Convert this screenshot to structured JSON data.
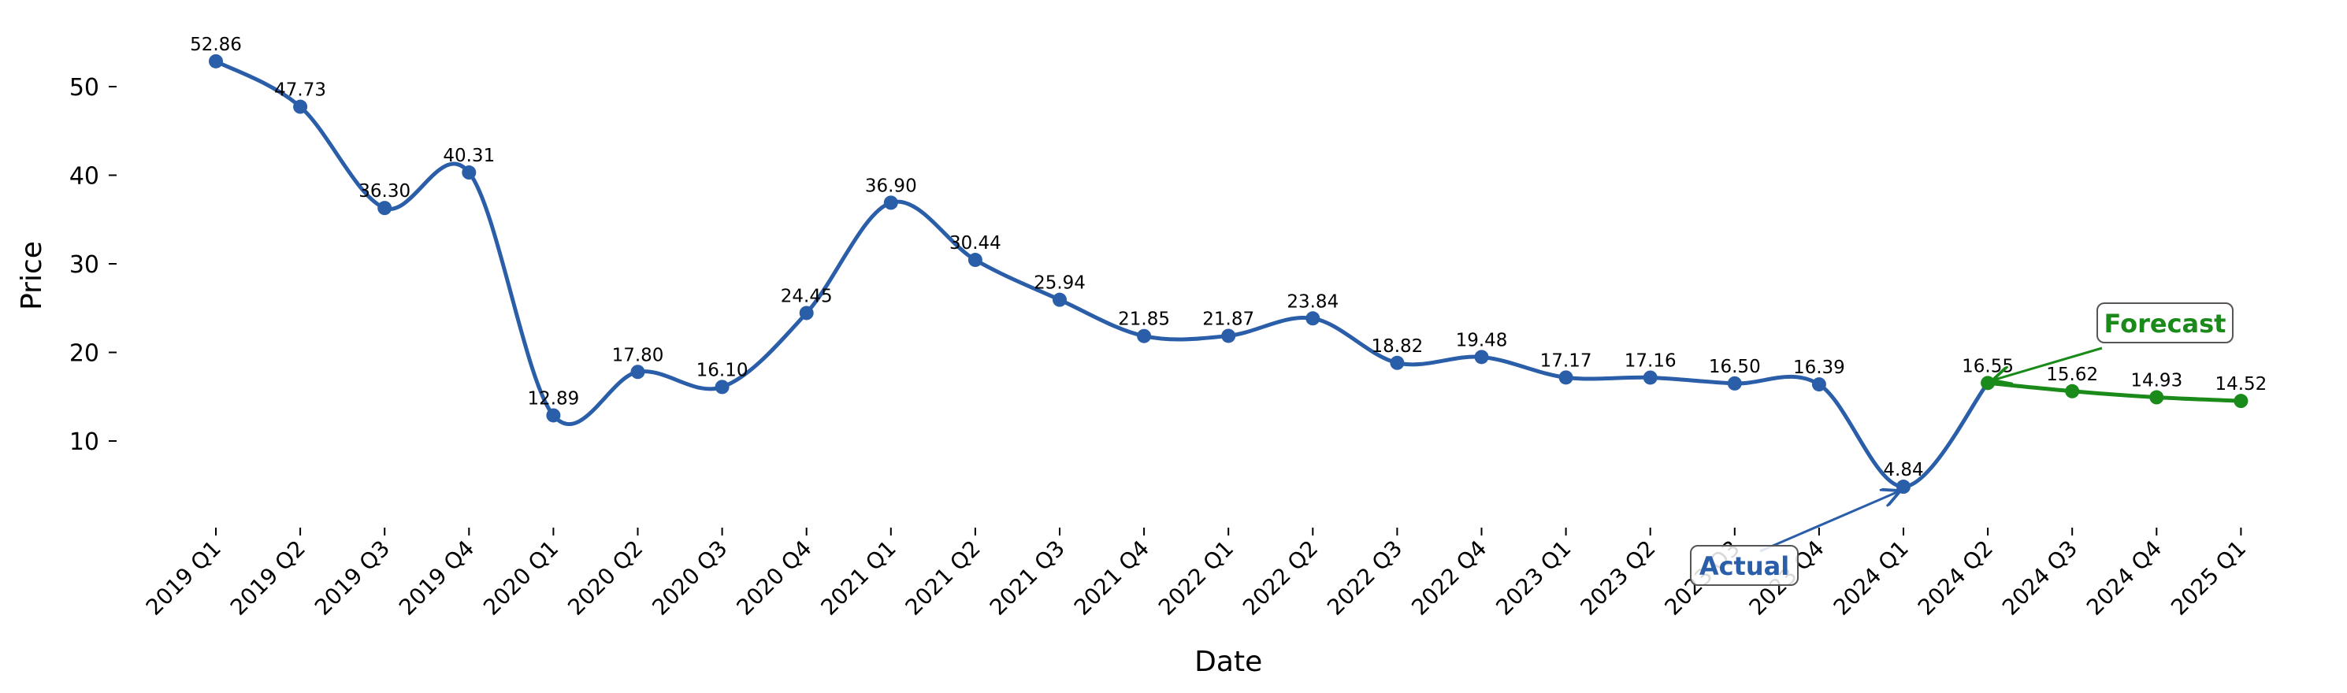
{
  "chart_data": {
    "type": "line",
    "title": "",
    "xlabel": "Date",
    "ylabel": "Price",
    "x": [
      "2019 Q1",
      "2019 Q2",
      "2019 Q3",
      "2019 Q4",
      "2020 Q1",
      "2020 Q2",
      "2020 Q3",
      "2020 Q4",
      "2021 Q1",
      "2021 Q2",
      "2021 Q3",
      "2021 Q4",
      "2022 Q1",
      "2022 Q2",
      "2022 Q3",
      "2022 Q4",
      "2023 Q1",
      "2023 Q2",
      "2023 Q3",
      "2023 Q4",
      "2024 Q1",
      "2024 Q2",
      "2024 Q3",
      "2024 Q4",
      "2025 Q1"
    ],
    "series": [
      {
        "values": [
          52.86,
          47.73,
          36.3,
          40.31,
          12.89,
          17.8,
          16.1,
          24.45,
          36.9,
          30.44,
          25.94,
          21.85,
          21.87,
          23.84,
          18.82,
          19.48,
          17.17,
          17.16,
          16.5,
          16.39,
          4.84,
          16.55,
          null,
          null,
          null
        ],
        "color": "#2a5ea8"
      },
      {
        "values": [
          null,
          null,
          null,
          null,
          null,
          null,
          null,
          null,
          null,
          null,
          null,
          null,
          null,
          null,
          null,
          null,
          null,
          null,
          null,
          null,
          null,
          16.55,
          15.62,
          14.93,
          14.52
        ],
        "color": "#1a8a1a"
      }
    ],
    "data_labels": [
      "52.86",
      "47.73",
      "36.30",
      "40.31",
      "12.89",
      "17.80",
      "16.10",
      "24.45",
      "36.90",
      "30.44",
      "25.94",
      "21.85",
      "21.87",
      "23.84",
      "18.82",
      "19.48",
      "17.17",
      "17.16",
      "16.50",
      "16.39",
      "4.84",
      "16.55",
      "15.62",
      "14.93",
      "14.52"
    ],
    "ylim": [
      2,
      58
    ],
    "yticks": [
      10,
      20,
      30,
      40,
      50
    ],
    "grid": false,
    "annotations": [
      {
        "text": "Actual",
        "target_index": 20,
        "color": "#2a5ea8"
      },
      {
        "text": "Forecast",
        "target_index": 21,
        "color": "#1a8a1a"
      }
    ]
  }
}
